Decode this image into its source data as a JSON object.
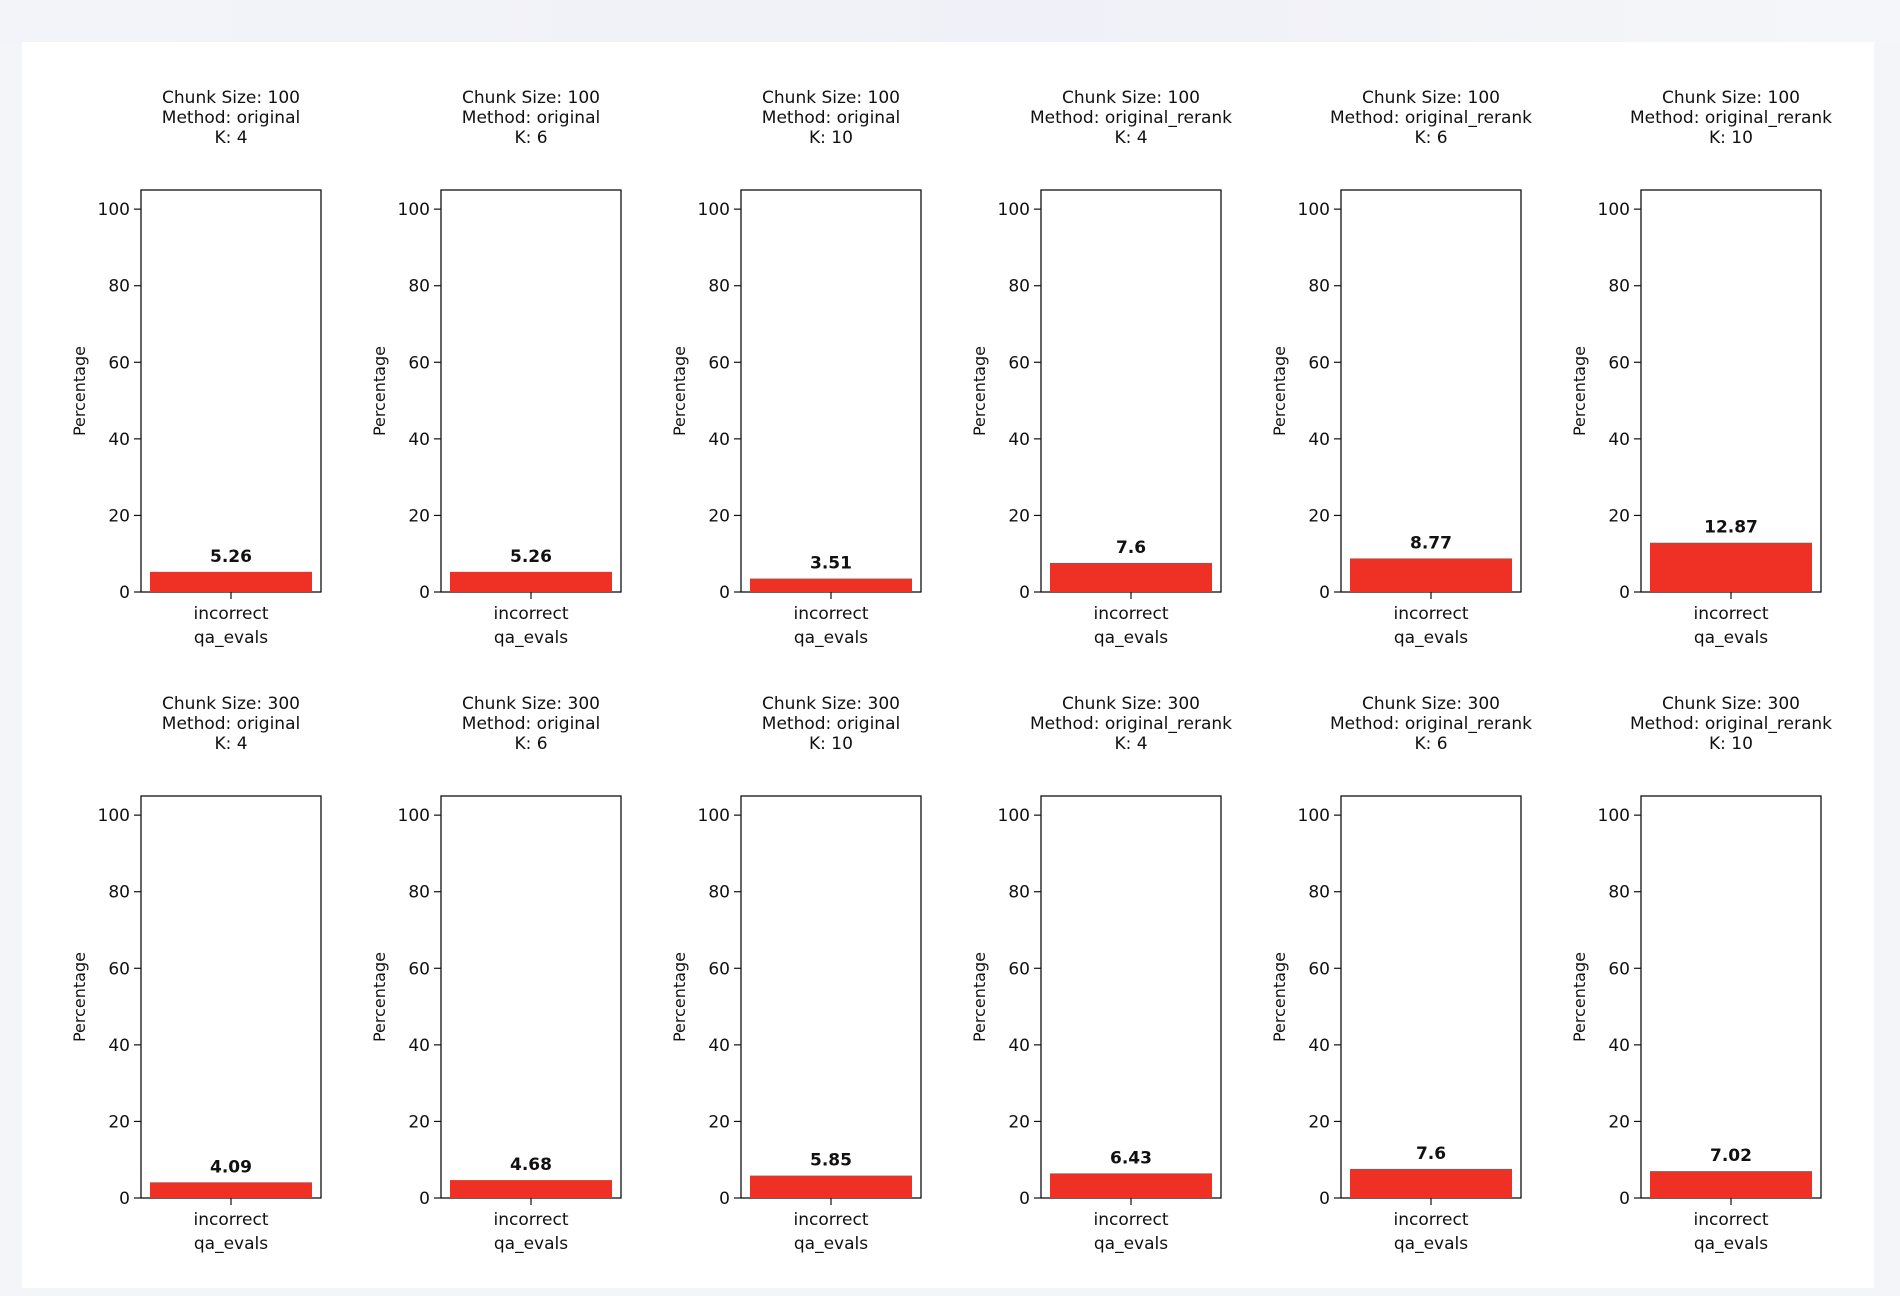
{
  "chart_data": [
    {
      "type": "bar",
      "title_lines": [
        "Chunk Size: 100",
        "Method: original",
        "K: 4"
      ],
      "categories": [
        "incorrect"
      ],
      "values": [
        5.26
      ],
      "data_labels": [
        "5.26"
      ],
      "xlabel": "qa_evals",
      "ylabel": "Percentage",
      "ylim": [
        0,
        105
      ],
      "yticks": [
        "0",
        "20",
        "40",
        "60",
        "80",
        "100"
      ],
      "color": "#ee3124"
    },
    {
      "type": "bar",
      "title_lines": [
        "Chunk Size: 100",
        "Method: original",
        "K: 6"
      ],
      "categories": [
        "incorrect"
      ],
      "values": [
        5.26
      ],
      "data_labels": [
        "5.26"
      ],
      "xlabel": "qa_evals",
      "ylabel": "Percentage",
      "ylim": [
        0,
        105
      ],
      "yticks": [
        "0",
        "20",
        "40",
        "60",
        "80",
        "100"
      ],
      "color": "#ee3124"
    },
    {
      "type": "bar",
      "title_lines": [
        "Chunk Size: 100",
        "Method: original",
        "K: 10"
      ],
      "categories": [
        "incorrect"
      ],
      "values": [
        3.51
      ],
      "data_labels": [
        "3.51"
      ],
      "xlabel": "qa_evals",
      "ylabel": "Percentage",
      "ylim": [
        0,
        105
      ],
      "yticks": [
        "0",
        "20",
        "40",
        "60",
        "80",
        "100"
      ],
      "color": "#ee3124"
    },
    {
      "type": "bar",
      "title_lines": [
        "Chunk Size: 100",
        "Method: original_rerank",
        "K: 4"
      ],
      "categories": [
        "incorrect"
      ],
      "values": [
        7.6
      ],
      "data_labels": [
        "7.6"
      ],
      "xlabel": "qa_evals",
      "ylabel": "Percentage",
      "ylim": [
        0,
        105
      ],
      "yticks": [
        "0",
        "20",
        "40",
        "60",
        "80",
        "100"
      ],
      "color": "#ee3124"
    },
    {
      "type": "bar",
      "title_lines": [
        "Chunk Size: 100",
        "Method: original_rerank",
        "K: 6"
      ],
      "categories": [
        "incorrect"
      ],
      "values": [
        8.77
      ],
      "data_labels": [
        "8.77"
      ],
      "xlabel": "qa_evals",
      "ylabel": "Percentage",
      "ylim": [
        0,
        105
      ],
      "yticks": [
        "0",
        "20",
        "40",
        "60",
        "80",
        "100"
      ],
      "color": "#ee3124"
    },
    {
      "type": "bar",
      "title_lines": [
        "Chunk Size: 100",
        "Method: original_rerank",
        "K: 10"
      ],
      "categories": [
        "incorrect"
      ],
      "values": [
        12.87
      ],
      "data_labels": [
        "12.87"
      ],
      "xlabel": "qa_evals",
      "ylabel": "Percentage",
      "ylim": [
        0,
        105
      ],
      "yticks": [
        "0",
        "20",
        "40",
        "60",
        "80",
        "100"
      ],
      "color": "#ee3124"
    },
    {
      "type": "bar",
      "title_lines": [
        "Chunk Size: 300",
        "Method: original",
        "K: 4"
      ],
      "categories": [
        "incorrect"
      ],
      "values": [
        4.09
      ],
      "data_labels": [
        "4.09"
      ],
      "xlabel": "qa_evals",
      "ylabel": "Percentage",
      "ylim": [
        0,
        105
      ],
      "yticks": [
        "0",
        "20",
        "40",
        "60",
        "80",
        "100"
      ],
      "color": "#ee3124"
    },
    {
      "type": "bar",
      "title_lines": [
        "Chunk Size: 300",
        "Method: original",
        "K: 6"
      ],
      "categories": [
        "incorrect"
      ],
      "values": [
        4.68
      ],
      "data_labels": [
        "4.68"
      ],
      "xlabel": "qa_evals",
      "ylabel": "Percentage",
      "ylim": [
        0,
        105
      ],
      "yticks": [
        "0",
        "20",
        "40",
        "60",
        "80",
        "100"
      ],
      "color": "#ee3124"
    },
    {
      "type": "bar",
      "title_lines": [
        "Chunk Size: 300",
        "Method: original",
        "K: 10"
      ],
      "categories": [
        "incorrect"
      ],
      "values": [
        5.85
      ],
      "data_labels": [
        "5.85"
      ],
      "xlabel": "qa_evals",
      "ylabel": "Percentage",
      "ylim": [
        0,
        105
      ],
      "yticks": [
        "0",
        "20",
        "40",
        "60",
        "80",
        "100"
      ],
      "color": "#ee3124"
    },
    {
      "type": "bar",
      "title_lines": [
        "Chunk Size: 300",
        "Method: original_rerank",
        "K: 4"
      ],
      "categories": [
        "incorrect"
      ],
      "values": [
        6.43
      ],
      "data_labels": [
        "6.43"
      ],
      "xlabel": "qa_evals",
      "ylabel": "Percentage",
      "ylim": [
        0,
        105
      ],
      "yticks": [
        "0",
        "20",
        "40",
        "60",
        "80",
        "100"
      ],
      "color": "#ee3124"
    },
    {
      "type": "bar",
      "title_lines": [
        "Chunk Size: 300",
        "Method: original_rerank",
        "K: 6"
      ],
      "categories": [
        "incorrect"
      ],
      "values": [
        7.6
      ],
      "data_labels": [
        "7.6"
      ],
      "xlabel": "qa_evals",
      "ylabel": "Percentage",
      "ylim": [
        0,
        105
      ],
      "yticks": [
        "0",
        "20",
        "40",
        "60",
        "80",
        "100"
      ],
      "color": "#ee3124"
    },
    {
      "type": "bar",
      "title_lines": [
        "Chunk Size: 300",
        "Method: original_rerank",
        "K: 10"
      ],
      "categories": [
        "incorrect"
      ],
      "values": [
        7.02
      ],
      "data_labels": [
        "7.02"
      ],
      "xlabel": "qa_evals",
      "ylabel": "Percentage",
      "ylim": [
        0,
        105
      ],
      "yticks": [
        "0",
        "20",
        "40",
        "60",
        "80",
        "100"
      ],
      "color": "#ee3124"
    }
  ]
}
